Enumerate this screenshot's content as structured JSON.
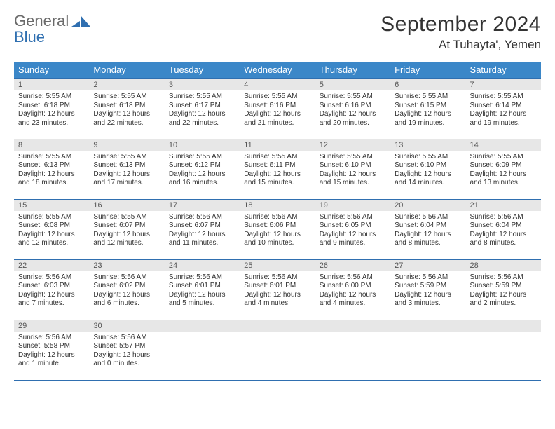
{
  "brand": {
    "word1": "General",
    "word2": "Blue"
  },
  "title": "September 2024",
  "location": "At Tuhayta', Yemen",
  "colors": {
    "header_bg": "#3b87c8",
    "header_border": "#2f6fb0",
    "row_border": "#2f6fb0",
    "daynum_bg": "#e7e7e7",
    "text": "#333333",
    "logo_gray": "#6a6a6a",
    "logo_blue": "#2f6fb0"
  },
  "weekdays": [
    "Sunday",
    "Monday",
    "Tuesday",
    "Wednesday",
    "Thursday",
    "Friday",
    "Saturday"
  ],
  "weeks": [
    [
      {
        "n": "1",
        "sr": "5:55 AM",
        "ss": "6:18 PM",
        "dl": "12 hours and 23 minutes."
      },
      {
        "n": "2",
        "sr": "5:55 AM",
        "ss": "6:18 PM",
        "dl": "12 hours and 22 minutes."
      },
      {
        "n": "3",
        "sr": "5:55 AM",
        "ss": "6:17 PM",
        "dl": "12 hours and 22 minutes."
      },
      {
        "n": "4",
        "sr": "5:55 AM",
        "ss": "6:16 PM",
        "dl": "12 hours and 21 minutes."
      },
      {
        "n": "5",
        "sr": "5:55 AM",
        "ss": "6:16 PM",
        "dl": "12 hours and 20 minutes."
      },
      {
        "n": "6",
        "sr": "5:55 AM",
        "ss": "6:15 PM",
        "dl": "12 hours and 19 minutes."
      },
      {
        "n": "7",
        "sr": "5:55 AM",
        "ss": "6:14 PM",
        "dl": "12 hours and 19 minutes."
      }
    ],
    [
      {
        "n": "8",
        "sr": "5:55 AM",
        "ss": "6:13 PM",
        "dl": "12 hours and 18 minutes."
      },
      {
        "n": "9",
        "sr": "5:55 AM",
        "ss": "6:13 PM",
        "dl": "12 hours and 17 minutes."
      },
      {
        "n": "10",
        "sr": "5:55 AM",
        "ss": "6:12 PM",
        "dl": "12 hours and 16 minutes."
      },
      {
        "n": "11",
        "sr": "5:55 AM",
        "ss": "6:11 PM",
        "dl": "12 hours and 15 minutes."
      },
      {
        "n": "12",
        "sr": "5:55 AM",
        "ss": "6:10 PM",
        "dl": "12 hours and 15 minutes."
      },
      {
        "n": "13",
        "sr": "5:55 AM",
        "ss": "6:10 PM",
        "dl": "12 hours and 14 minutes."
      },
      {
        "n": "14",
        "sr": "5:55 AM",
        "ss": "6:09 PM",
        "dl": "12 hours and 13 minutes."
      }
    ],
    [
      {
        "n": "15",
        "sr": "5:55 AM",
        "ss": "6:08 PM",
        "dl": "12 hours and 12 minutes."
      },
      {
        "n": "16",
        "sr": "5:55 AM",
        "ss": "6:07 PM",
        "dl": "12 hours and 12 minutes."
      },
      {
        "n": "17",
        "sr": "5:56 AM",
        "ss": "6:07 PM",
        "dl": "12 hours and 11 minutes."
      },
      {
        "n": "18",
        "sr": "5:56 AM",
        "ss": "6:06 PM",
        "dl": "12 hours and 10 minutes."
      },
      {
        "n": "19",
        "sr": "5:56 AM",
        "ss": "6:05 PM",
        "dl": "12 hours and 9 minutes."
      },
      {
        "n": "20",
        "sr": "5:56 AM",
        "ss": "6:04 PM",
        "dl": "12 hours and 8 minutes."
      },
      {
        "n": "21",
        "sr": "5:56 AM",
        "ss": "6:04 PM",
        "dl": "12 hours and 8 minutes."
      }
    ],
    [
      {
        "n": "22",
        "sr": "5:56 AM",
        "ss": "6:03 PM",
        "dl": "12 hours and 7 minutes."
      },
      {
        "n": "23",
        "sr": "5:56 AM",
        "ss": "6:02 PM",
        "dl": "12 hours and 6 minutes."
      },
      {
        "n": "24",
        "sr": "5:56 AM",
        "ss": "6:01 PM",
        "dl": "12 hours and 5 minutes."
      },
      {
        "n": "25",
        "sr": "5:56 AM",
        "ss": "6:01 PM",
        "dl": "12 hours and 4 minutes."
      },
      {
        "n": "26",
        "sr": "5:56 AM",
        "ss": "6:00 PM",
        "dl": "12 hours and 4 minutes."
      },
      {
        "n": "27",
        "sr": "5:56 AM",
        "ss": "5:59 PM",
        "dl": "12 hours and 3 minutes."
      },
      {
        "n": "28",
        "sr": "5:56 AM",
        "ss": "5:59 PM",
        "dl": "12 hours and 2 minutes."
      }
    ],
    [
      {
        "n": "29",
        "sr": "5:56 AM",
        "ss": "5:58 PM",
        "dl": "12 hours and 1 minute."
      },
      {
        "n": "30",
        "sr": "5:56 AM",
        "ss": "5:57 PM",
        "dl": "12 hours and 0 minutes."
      },
      {
        "empty": true
      },
      {
        "empty": true
      },
      {
        "empty": true
      },
      {
        "empty": true
      },
      {
        "empty": true
      }
    ]
  ],
  "labels": {
    "sunrise": "Sunrise:",
    "sunset": "Sunset:",
    "daylight": "Daylight:"
  }
}
